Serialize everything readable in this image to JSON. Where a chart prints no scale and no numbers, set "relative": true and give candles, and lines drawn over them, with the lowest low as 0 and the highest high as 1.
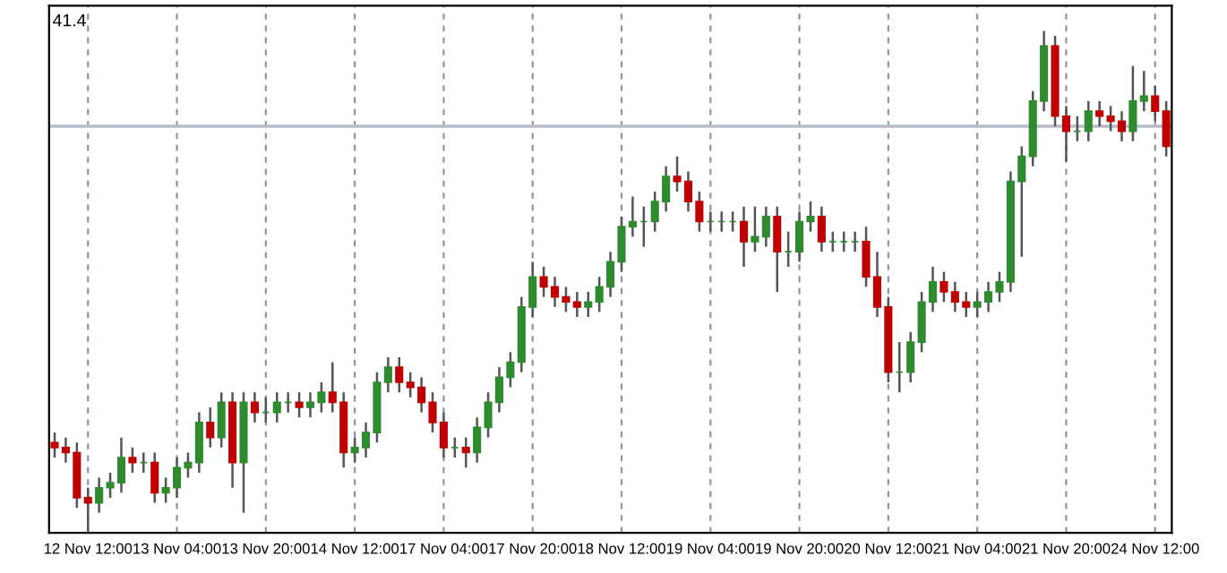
{
  "chart_data": {
    "type": "candlestick",
    "relative": true,
    "categories": [
      null,
      null,
      null,
      "12 Nov 12:00",
      null,
      null,
      null,
      null,
      null,
      null,
      null,
      "13 Nov 04:00",
      null,
      null,
      null,
      null,
      null,
      null,
      null,
      "13 Nov 20:00",
      null,
      null,
      null,
      null,
      null,
      null,
      null,
      "14 Nov 12:00",
      null,
      null,
      null,
      null,
      null,
      null,
      null,
      "17 Nov 04:00",
      null,
      null,
      null,
      null,
      null,
      null,
      null,
      "17 Nov 20:00",
      null,
      null,
      null,
      null,
      null,
      null,
      null,
      "18 Nov 12:00",
      null,
      null,
      null,
      null,
      null,
      null,
      null,
      "19 Nov 04:00",
      null,
      null,
      null,
      null,
      null,
      null,
      null,
      "19 Nov 20:00",
      null,
      null,
      null,
      null,
      null,
      null,
      null,
      "20 Nov 12:00",
      null,
      null,
      null,
      null,
      null,
      null,
      null,
      "21 Nov 04:00",
      null,
      null,
      null,
      null,
      null,
      null,
      null,
      "21 Nov 20:00",
      null,
      null,
      null,
      null,
      null,
      null,
      null,
      "24 Nov 12:00",
      null
    ],
    "ohlc": [
      [
        0.18,
        0.2,
        0.15,
        0.17
      ],
      [
        0.17,
        0.19,
        0.14,
        0.16
      ],
      [
        0.16,
        0.18,
        0.05,
        0.07
      ],
      [
        0.07,
        0.09,
        0.0,
        0.06
      ],
      [
        0.06,
        0.11,
        0.04,
        0.09
      ],
      [
        0.09,
        0.12,
        0.07,
        0.1
      ],
      [
        0.1,
        0.19,
        0.08,
        0.15
      ],
      [
        0.15,
        0.17,
        0.12,
        0.14
      ],
      [
        0.14,
        0.16,
        0.12,
        0.14
      ],
      [
        0.14,
        0.16,
        0.06,
        0.08
      ],
      [
        0.08,
        0.11,
        0.06,
        0.09
      ],
      [
        0.09,
        0.15,
        0.07,
        0.13
      ],
      [
        0.13,
        0.16,
        0.11,
        0.14
      ],
      [
        0.14,
        0.24,
        0.12,
        0.22
      ],
      [
        0.22,
        0.25,
        0.17,
        0.19
      ],
      [
        0.19,
        0.28,
        0.17,
        0.26
      ],
      [
        0.26,
        0.28,
        0.09,
        0.14
      ],
      [
        0.14,
        0.28,
        0.04,
        0.26
      ],
      [
        0.26,
        0.28,
        0.22,
        0.24
      ],
      [
        0.24,
        0.27,
        0.22,
        0.24
      ],
      [
        0.24,
        0.28,
        0.22,
        0.26
      ],
      [
        0.26,
        0.28,
        0.24,
        0.26
      ],
      [
        0.26,
        0.28,
        0.23,
        0.25
      ],
      [
        0.25,
        0.28,
        0.23,
        0.26
      ],
      [
        0.26,
        0.3,
        0.24,
        0.28
      ],
      [
        0.28,
        0.34,
        0.24,
        0.26
      ],
      [
        0.26,
        0.28,
        0.13,
        0.16
      ],
      [
        0.16,
        0.19,
        0.14,
        0.17
      ],
      [
        0.17,
        0.22,
        0.15,
        0.2
      ],
      [
        0.2,
        0.32,
        0.18,
        0.3
      ],
      [
        0.3,
        0.35,
        0.28,
        0.33
      ],
      [
        0.33,
        0.35,
        0.28,
        0.3
      ],
      [
        0.3,
        0.32,
        0.27,
        0.29
      ],
      [
        0.29,
        0.31,
        0.24,
        0.26
      ],
      [
        0.26,
        0.28,
        0.2,
        0.22
      ],
      [
        0.22,
        0.24,
        0.15,
        0.17
      ],
      [
        0.17,
        0.19,
        0.15,
        0.17
      ],
      [
        0.17,
        0.19,
        0.13,
        0.16
      ],
      [
        0.16,
        0.23,
        0.14,
        0.21
      ],
      [
        0.21,
        0.28,
        0.19,
        0.26
      ],
      [
        0.26,
        0.33,
        0.24,
        0.31
      ],
      [
        0.31,
        0.36,
        0.29,
        0.34
      ],
      [
        0.34,
        0.47,
        0.32,
        0.45
      ],
      [
        0.45,
        0.54,
        0.43,
        0.51
      ],
      [
        0.51,
        0.53,
        0.47,
        0.49
      ],
      [
        0.49,
        0.51,
        0.45,
        0.47
      ],
      [
        0.47,
        0.49,
        0.44,
        0.46
      ],
      [
        0.46,
        0.48,
        0.43,
        0.45
      ],
      [
        0.45,
        0.48,
        0.43,
        0.46
      ],
      [
        0.46,
        0.51,
        0.44,
        0.49
      ],
      [
        0.49,
        0.56,
        0.47,
        0.54
      ],
      [
        0.54,
        0.63,
        0.52,
        0.61
      ],
      [
        0.61,
        0.67,
        0.59,
        0.62
      ],
      [
        0.62,
        0.65,
        0.57,
        0.62
      ],
      [
        0.62,
        0.68,
        0.6,
        0.66
      ],
      [
        0.66,
        0.73,
        0.64,
        0.71
      ],
      [
        0.71,
        0.75,
        0.68,
        0.7
      ],
      [
        0.7,
        0.72,
        0.64,
        0.66
      ],
      [
        0.66,
        0.68,
        0.6,
        0.62
      ],
      [
        0.62,
        0.64,
        0.6,
        0.62
      ],
      [
        0.62,
        0.64,
        0.6,
        0.62
      ],
      [
        0.62,
        0.64,
        0.6,
        0.62
      ],
      [
        0.62,
        0.65,
        0.53,
        0.58
      ],
      [
        0.58,
        0.65,
        0.56,
        0.59
      ],
      [
        0.59,
        0.65,
        0.57,
        0.63
      ],
      [
        0.63,
        0.65,
        0.48,
        0.56
      ],
      [
        0.56,
        0.6,
        0.53,
        0.56
      ],
      [
        0.56,
        0.64,
        0.54,
        0.62
      ],
      [
        0.62,
        0.66,
        0.6,
        0.63
      ],
      [
        0.63,
        0.65,
        0.56,
        0.58
      ],
      [
        0.58,
        0.6,
        0.56,
        0.58
      ],
      [
        0.58,
        0.6,
        0.56,
        0.58
      ],
      [
        0.58,
        0.6,
        0.56,
        0.58
      ],
      [
        0.58,
        0.61,
        0.49,
        0.51
      ],
      [
        0.51,
        0.56,
        0.43,
        0.45
      ],
      [
        0.45,
        0.47,
        0.3,
        0.32
      ],
      [
        0.32,
        0.38,
        0.28,
        0.32
      ],
      [
        0.32,
        0.4,
        0.3,
        0.38
      ],
      [
        0.38,
        0.48,
        0.36,
        0.46
      ],
      [
        0.46,
        0.53,
        0.44,
        0.5
      ],
      [
        0.5,
        0.52,
        0.46,
        0.48
      ],
      [
        0.48,
        0.5,
        0.44,
        0.46
      ],
      [
        0.46,
        0.48,
        0.43,
        0.45
      ],
      [
        0.45,
        0.48,
        0.43,
        0.46
      ],
      [
        0.46,
        0.5,
        0.44,
        0.48
      ],
      [
        0.48,
        0.52,
        0.46,
        0.5
      ],
      [
        0.5,
        0.72,
        0.48,
        0.7
      ],
      [
        0.7,
        0.77,
        0.55,
        0.75
      ],
      [
        0.75,
        0.88,
        0.73,
        0.86
      ],
      [
        0.86,
        1.0,
        0.84,
        0.97
      ],
      [
        0.97,
        0.99,
        0.81,
        0.83
      ],
      [
        0.83,
        0.85,
        0.74,
        0.8
      ],
      [
        0.8,
        0.83,
        0.78,
        0.8
      ],
      [
        0.8,
        0.86,
        0.78,
        0.84
      ],
      [
        0.84,
        0.86,
        0.81,
        0.83
      ],
      [
        0.83,
        0.85,
        0.8,
        0.82
      ],
      [
        0.82,
        0.84,
        0.78,
        0.8
      ],
      [
        0.8,
        0.93,
        0.78,
        0.86
      ],
      [
        0.86,
        0.92,
        0.84,
        0.87
      ],
      [
        0.87,
        0.89,
        0.82,
        0.84
      ],
      [
        0.84,
        0.86,
        0.75,
        0.77
      ]
    ],
    "colors": [
      "#c00000",
      "#c00000",
      "#c00000",
      "#c00000",
      "#2e8b2e",
      "#2e8b2e",
      "#2e8b2e",
      "#c00000",
      "#2e8b2e",
      "#c00000",
      "#2e8b2e",
      "#2e8b2e",
      "#2e8b2e",
      "#2e8b2e",
      "#c00000",
      "#2e8b2e",
      "#c00000",
      "#2e8b2e",
      "#c00000",
      "#2e8b2e",
      "#2e8b2e",
      "#2e8b2e",
      "#c00000",
      "#2e8b2e",
      "#2e8b2e",
      "#c00000",
      "#c00000",
      "#2e8b2e",
      "#2e8b2e",
      "#2e8b2e",
      "#2e8b2e",
      "#c00000",
      "#c00000",
      "#c00000",
      "#c00000",
      "#c00000",
      "#2e8b2e",
      "#c00000",
      "#2e8b2e",
      "#2e8b2e",
      "#2e8b2e",
      "#2e8b2e",
      "#2e8b2e",
      "#2e8b2e",
      "#c00000",
      "#c00000",
      "#c00000",
      "#c00000",
      "#2e8b2e",
      "#2e8b2e",
      "#2e8b2e",
      "#2e8b2e",
      "#2e8b2e",
      "#2e8b2e",
      "#2e8b2e",
      "#2e8b2e",
      "#c00000",
      "#c00000",
      "#c00000",
      "#2e8b2e",
      "#2e8b2e",
      "#2e8b2e",
      "#c00000",
      "#2e8b2e",
      "#2e8b2e",
      "#c00000",
      "#2e8b2e",
      "#2e8b2e",
      "#2e8b2e",
      "#c00000",
      "#2e8b2e",
      "#2e8b2e",
      "#2e8b2e",
      "#c00000",
      "#c00000",
      "#c00000",
      "#2e8b2e",
      "#2e8b2e",
      "#2e8b2e",
      "#2e8b2e",
      "#c00000",
      "#c00000",
      "#c00000",
      "#2e8b2e",
      "#2e8b2e",
      "#2e8b2e",
      "#2e8b2e",
      "#2e8b2e",
      "#2e8b2e",
      "#2e8b2e",
      "#c00000",
      "#c00000",
      "#2e8b2e",
      "#2e8b2e",
      "#c00000",
      "#c00000",
      "#c00000",
      "#2e8b2e",
      "#2e8b2e",
      "#c00000",
      "#c00000"
    ],
    "ref_lines": [
      {
        "axis": "y",
        "value": 0.81,
        "color": "#b4bcc8"
      }
    ],
    "annotations": [
      "41.4"
    ],
    "grid": "x"
  }
}
